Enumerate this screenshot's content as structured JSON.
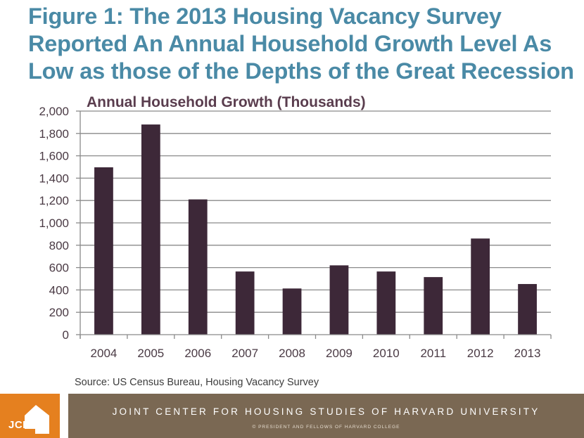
{
  "figure": {
    "title_lines": [
      "Figure 1: The 2013 Housing Vacancy Survey",
      "Reported An Annual Household Growth Level As",
      "Low as those of the Depths of the Great Recession"
    ],
    "source": "Source: US Census Bureau, Housing Vacancy Survey"
  },
  "footer": {
    "logo_text": "JCHS",
    "organization": "JOINT CENTER FOR HOUSING STUDIES OF HARVARD UNIVERSITY",
    "copyright": "© PRESIDENT AND FELLOWS OF HARVARD COLLEGE",
    "logo_color": "#e5801f",
    "band_color": "#7a6853"
  },
  "chart_data": {
    "type": "bar",
    "title": "Annual Household Growth (Thousands)",
    "xlabel": "",
    "ylabel": "",
    "categories": [
      "2004",
      "2005",
      "2006",
      "2007",
      "2008",
      "2009",
      "2010",
      "2011",
      "2012",
      "2013"
    ],
    "values": [
      1497,
      1880,
      1210,
      565,
      413,
      620,
      565,
      515,
      860,
      453
    ],
    "ylim": [
      0,
      2000
    ],
    "yticks": [
      0,
      200,
      400,
      600,
      800,
      1000,
      1200,
      1400,
      1600,
      1800,
      2000
    ],
    "ytick_labels": [
      "0",
      "200",
      "400",
      "600",
      "800",
      "1,000",
      "1,200",
      "1,400",
      "1,600",
      "1,800",
      "2,000"
    ],
    "grid": true,
    "legend": "none",
    "bar_color": "#3d2838",
    "title_color": "#5a3d4e"
  }
}
